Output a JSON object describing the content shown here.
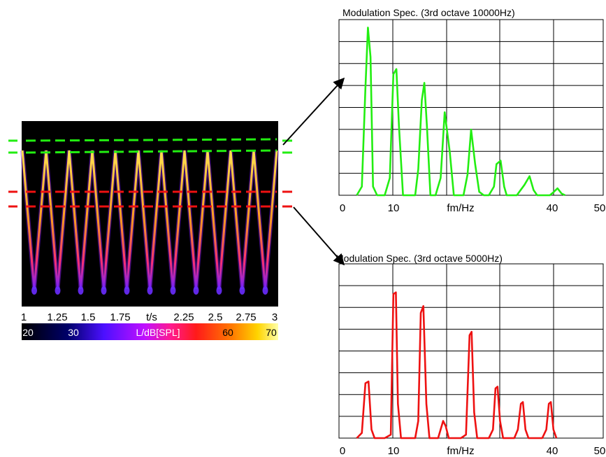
{
  "colors": {
    "green_trace": "#22ee11",
    "red_trace": "#ee1111",
    "green_marker": "#22ee11",
    "red_marker": "#ee1111",
    "spectrogram_bg": "#000000",
    "grid": "#000000",
    "arrow": "#000000"
  },
  "spectrogram": {
    "time_axis": {
      "ticks": [
        "1",
        "1.25",
        "1.5",
        "1.75",
        "t/s",
        "2.25",
        "2.5",
        "2.75",
        "3"
      ],
      "range": [
        1,
        3
      ]
    },
    "colorbar": {
      "ticks": [
        "20",
        "30",
        "L/dB[SPL]",
        "60",
        "70"
      ],
      "range": [
        20,
        70
      ]
    },
    "markers": [
      "green-upper",
      "green-lower",
      "red-upper",
      "red-lower"
    ]
  },
  "chart_data": [
    {
      "type": "line",
      "title": "Modulation Spec. (3rd octave 10000Hz)",
      "xlabel": "fm/Hz",
      "x_ticks": [
        "0",
        "10",
        "fm/Hz",
        "40",
        "50"
      ],
      "xlim": [
        0,
        52
      ],
      "ylim": [
        0,
        1
      ],
      "grid": true,
      "series": [
        {
          "color": "#22ee11",
          "points": [
            [
              3.5,
              0
            ],
            [
              4.5,
              0.05
            ],
            [
              5.2,
              0.62
            ],
            [
              5.7,
              0.97
            ],
            [
              6.2,
              0.8
            ],
            [
              6.7,
              0.05
            ],
            [
              7.5,
              0
            ],
            [
              9.0,
              0
            ],
            [
              10.0,
              0.1
            ],
            [
              10.7,
              0.7
            ],
            [
              11.3,
              0.73
            ],
            [
              11.8,
              0.4
            ],
            [
              12.6,
              0
            ],
            [
              13.5,
              0
            ],
            [
              15.0,
              0
            ],
            [
              15.6,
              0.15
            ],
            [
              16.3,
              0.55
            ],
            [
              16.8,
              0.65
            ],
            [
              17.3,
              0.4
            ],
            [
              18.0,
              0
            ],
            [
              19.0,
              0
            ],
            [
              20.0,
              0.1
            ],
            [
              20.8,
              0.48
            ],
            [
              21.8,
              0.25
            ],
            [
              22.6,
              0
            ],
            [
              23.5,
              0
            ],
            [
              24.5,
              0
            ],
            [
              25.3,
              0.12
            ],
            [
              26.0,
              0.38
            ],
            [
              26.8,
              0.18
            ],
            [
              27.6,
              0.02
            ],
            [
              28.5,
              0
            ],
            [
              29.5,
              0
            ],
            [
              30.5,
              0.05
            ],
            [
              31.0,
              0.18
            ],
            [
              31.8,
              0.2
            ],
            [
              32.5,
              0.05
            ],
            [
              33.0,
              0
            ],
            [
              35.0,
              0
            ],
            [
              36.5,
              0.06
            ],
            [
              37.5,
              0.11
            ],
            [
              38.3,
              0.03
            ],
            [
              39.0,
              0
            ],
            [
              41.5,
              0
            ],
            [
              42.3,
              0.02
            ],
            [
              43.0,
              0.04
            ],
            [
              43.8,
              0.01
            ],
            [
              44.5,
              0
            ]
          ]
        }
      ]
    },
    {
      "type": "line",
      "title": "Modulation Spec. (3rd octave 5000Hz)",
      "xlabel": "fm/Hz",
      "x_ticks": [
        "0",
        "10",
        "fm/Hz",
        "40",
        "50"
      ],
      "xlim": [
        0,
        52
      ],
      "ylim": [
        0,
        1
      ],
      "grid": true,
      "series": [
        {
          "color": "#ee1111",
          "points": [
            [
              3.5,
              0
            ],
            [
              4.5,
              0.03
            ],
            [
              5.2,
              0.32
            ],
            [
              5.8,
              0.33
            ],
            [
              6.4,
              0.05
            ],
            [
              7.0,
              0
            ],
            [
              9.0,
              0
            ],
            [
              10.2,
              0.02
            ],
            [
              10.7,
              0.84
            ],
            [
              11.2,
              0.85
            ],
            [
              11.6,
              0.2
            ],
            [
              12.2,
              0
            ],
            [
              15.0,
              0
            ],
            [
              15.6,
              0.1
            ],
            [
              16.1,
              0.73
            ],
            [
              16.6,
              0.77
            ],
            [
              17.2,
              0.2
            ],
            [
              17.8,
              0
            ],
            [
              19.5,
              0
            ],
            [
              20.0,
              0.05
            ],
            [
              20.5,
              0.1
            ],
            [
              21.0,
              0.07
            ],
            [
              21.6,
              0
            ],
            [
              24.0,
              0
            ],
            [
              25.0,
              0.02
            ],
            [
              25.7,
              0.6
            ],
            [
              26.1,
              0.62
            ],
            [
              26.6,
              0.15
            ],
            [
              27.2,
              0
            ],
            [
              29.5,
              0
            ],
            [
              30.3,
              0.05
            ],
            [
              30.8,
              0.29
            ],
            [
              31.2,
              0.3
            ],
            [
              31.7,
              0.1
            ],
            [
              32.3,
              0
            ],
            [
              34.5,
              0
            ],
            [
              35.2,
              0.05
            ],
            [
              35.8,
              0.2
            ],
            [
              36.2,
              0.21
            ],
            [
              36.7,
              0.05
            ],
            [
              37.3,
              0
            ],
            [
              40.0,
              0
            ],
            [
              40.8,
              0.05
            ],
            [
              41.3,
              0.2
            ],
            [
              41.7,
              0.21
            ],
            [
              42.2,
              0.05
            ],
            [
              42.8,
              0
            ]
          ]
        }
      ]
    },
    {
      "type": "heatmap",
      "xlabel": "t/s",
      "colorbar_label": "L/dB[SPL]",
      "xlim": [
        1,
        3
      ],
      "clim": [
        20,
        70
      ]
    }
  ]
}
